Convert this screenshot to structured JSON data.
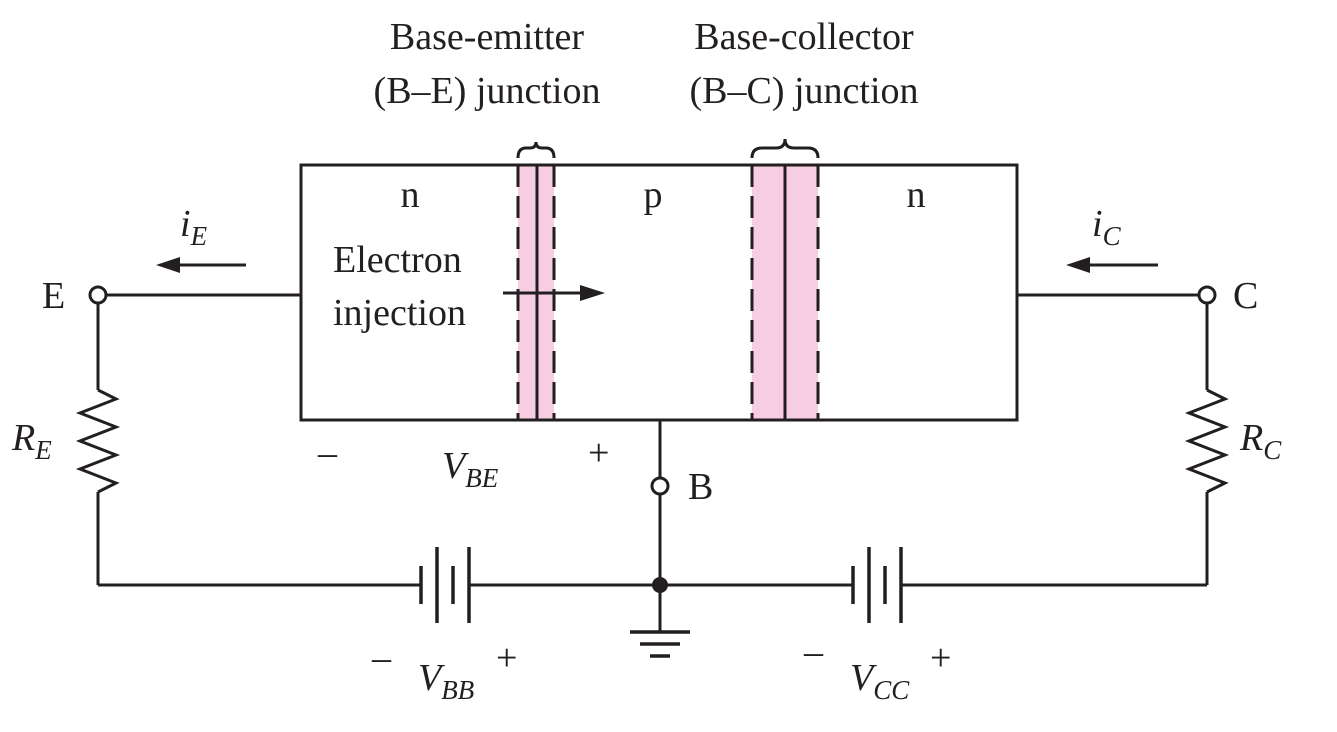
{
  "colors": {
    "line": "#231f20",
    "depletion_region": "#f7cde2",
    "background": "#ffffff"
  },
  "labels": {
    "be_junction_line1": "Base-emitter",
    "be_junction_line2": "(B–E) junction",
    "bc_junction_line1": "Base-collector",
    "bc_junction_line2": "(B–C) junction",
    "region_emitter": "n",
    "region_base": "p",
    "region_collector": "n",
    "electron_line1": "Electron",
    "electron_line2": "injection",
    "terminal_e": "E",
    "terminal_c": "C",
    "terminal_b": "B",
    "current_e_main": "i",
    "current_e_sub": "E",
    "current_c_main": "i",
    "current_c_sub": "C",
    "resistor_e_main": "R",
    "resistor_e_sub": "E",
    "resistor_c_main": "R",
    "resistor_c_sub": "C",
    "vbe_minus": "–",
    "vbe_plus": "+",
    "vbe_main": "V",
    "vbe_sub": "BE",
    "vbb_minus": "–",
    "vbb_plus": "+",
    "vbb_main": "V",
    "vbb_sub": "BB",
    "vcc_minus": "–",
    "vcc_plus": "+",
    "vcc_main": "V",
    "vcc_sub": "CC"
  },
  "icons": {
    "ground": "ground-icon",
    "battery": "battery-icon",
    "resistor": "resistor-icon",
    "arrow": "arrow-icon"
  }
}
